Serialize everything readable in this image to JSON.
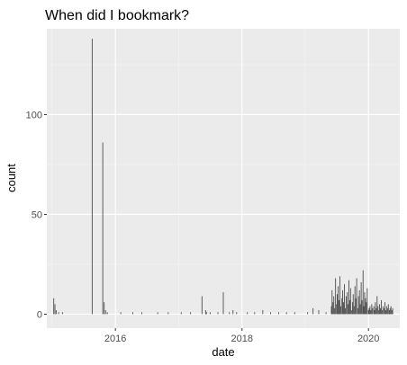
{
  "chart_data": {
    "type": "bar",
    "title": "When did I bookmark?",
    "xlabel": "date",
    "ylabel": "count",
    "x_ticks": [
      "2016",
      "2018",
      "2020"
    ],
    "y_ticks": [
      0,
      50,
      100
    ],
    "xlim": [
      "2014-12-01",
      "2020-06-30"
    ],
    "ylim": [
      -7,
      143
    ],
    "grid": true,
    "panel_background": "#ebebeb",
    "grid_color": "#ffffff",
    "bar_color": "#4d4d4d",
    "x": [
      "2015-01-10",
      "2015-01-17",
      "2015-01-24",
      "2015-02-07",
      "2015-03-01",
      "2015-08-20",
      "2015-10-20",
      "2015-10-28",
      "2015-11-05",
      "2015-11-15",
      "2016-02-01",
      "2016-04-10",
      "2016-06-01",
      "2016-09-01",
      "2016-11-01",
      "2017-01-15",
      "2017-03-10",
      "2017-05-15",
      "2017-06-05",
      "2017-06-10",
      "2017-07-01",
      "2017-08-15",
      "2017-09-15",
      "2017-10-20",
      "2017-11-10",
      "2017-12-01",
      "2018-02-01",
      "2018-03-15",
      "2018-05-01",
      "2018-06-15",
      "2018-08-01",
      "2018-09-15",
      "2018-11-01",
      "2019-01-15",
      "2019-02-15",
      "2019-03-20",
      "2019-05-01",
      "2019-06-01",
      "2019-06-05",
      "2019-06-10",
      "2019-06-15",
      "2019-06-20",
      "2019-06-25",
      "2019-07-01",
      "2019-07-05",
      "2019-07-10",
      "2019-07-15",
      "2019-07-20",
      "2019-07-25",
      "2019-08-01",
      "2019-08-05",
      "2019-08-10",
      "2019-08-15",
      "2019-08-20",
      "2019-08-25",
      "2019-09-01",
      "2019-09-05",
      "2019-09-10",
      "2019-09-15",
      "2019-09-20",
      "2019-09-25",
      "2019-10-01",
      "2019-10-05",
      "2019-10-10",
      "2019-10-15",
      "2019-10-20",
      "2019-10-25",
      "2019-11-01",
      "2019-11-05",
      "2019-11-10",
      "2019-11-15",
      "2019-11-20",
      "2019-11-25",
      "2019-12-01",
      "2019-12-05",
      "2019-12-10",
      "2019-12-15",
      "2019-12-20",
      "2019-12-25",
      "2020-01-01",
      "2020-01-05",
      "2020-01-10",
      "2020-01-15",
      "2020-01-20",
      "2020-01-25",
      "2020-02-01",
      "2020-02-05",
      "2020-02-10",
      "2020-02-15",
      "2020-02-20",
      "2020-02-25",
      "2020-03-01",
      "2020-03-05",
      "2020-03-10",
      "2020-03-15",
      "2020-03-20",
      "2020-03-25",
      "2020-04-01",
      "2020-04-05",
      "2020-04-10",
      "2020-04-15",
      "2020-04-20",
      "2020-04-25",
      "2020-05-01",
      "2020-05-05",
      "2020-05-10",
      "2020-05-15",
      "2020-05-20"
    ],
    "values": [
      8,
      5,
      2,
      1,
      1,
      138,
      86,
      6,
      2,
      1,
      1,
      1,
      1,
      1,
      1,
      1,
      1,
      9,
      2,
      1,
      1,
      1,
      11,
      1,
      2,
      1,
      1,
      1,
      2,
      1,
      1,
      1,
      1,
      1,
      3,
      2,
      1,
      4,
      12,
      6,
      9,
      3,
      18,
      5,
      10,
      14,
      7,
      19,
      4,
      8,
      12,
      6,
      15,
      3,
      9,
      11,
      5,
      17,
      7,
      13,
      2,
      6,
      10,
      4,
      14,
      8,
      18,
      3,
      9,
      12,
      5,
      16,
      7,
      22,
      4,
      11,
      8,
      6,
      13,
      2,
      3,
      4,
      2,
      5,
      3,
      4,
      2,
      6,
      3,
      9,
      4,
      2,
      5,
      3,
      7,
      2,
      4,
      3,
      6,
      2,
      4,
      3,
      5,
      2,
      3,
      4,
      2,
      3
    ]
  }
}
